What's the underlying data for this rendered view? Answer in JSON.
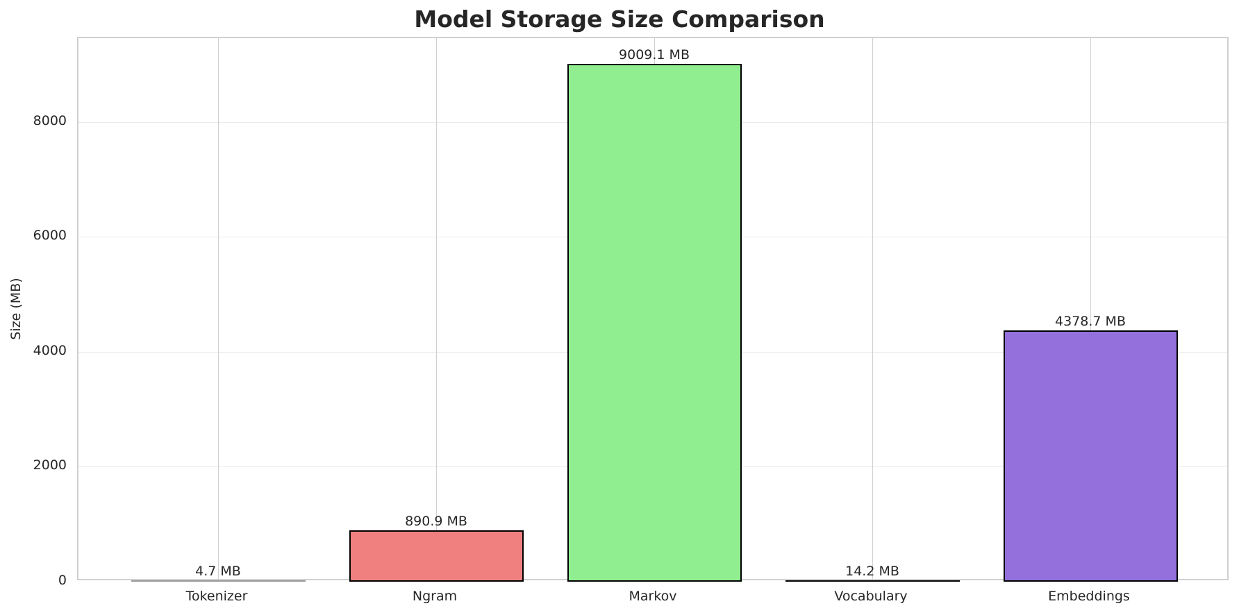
{
  "chart_data": {
    "type": "bar",
    "title": "Model Storage Size Comparison",
    "xlabel": "",
    "ylabel": "Size (MB)",
    "categories": [
      "Tokenizer",
      "Ngram",
      "Markov",
      "Vocabulary",
      "Embeddings"
    ],
    "values": [
      4.7,
      890.9,
      9009.1,
      14.2,
      4378.7
    ],
    "value_labels": [
      "4.7 MB",
      "890.9 MB",
      "9009.1 MB",
      "14.2 MB",
      "4378.7 MB"
    ],
    "colors": [
      "#87ceeb",
      "#f08080",
      "#90ee90",
      "#ffd700",
      "#9370db"
    ],
    "edge_color": "#000000",
    "yticks": [
      0,
      2000,
      4000,
      6000,
      8000
    ],
    "ylim": [
      0,
      9460
    ],
    "grid": true,
    "legend": null
  }
}
